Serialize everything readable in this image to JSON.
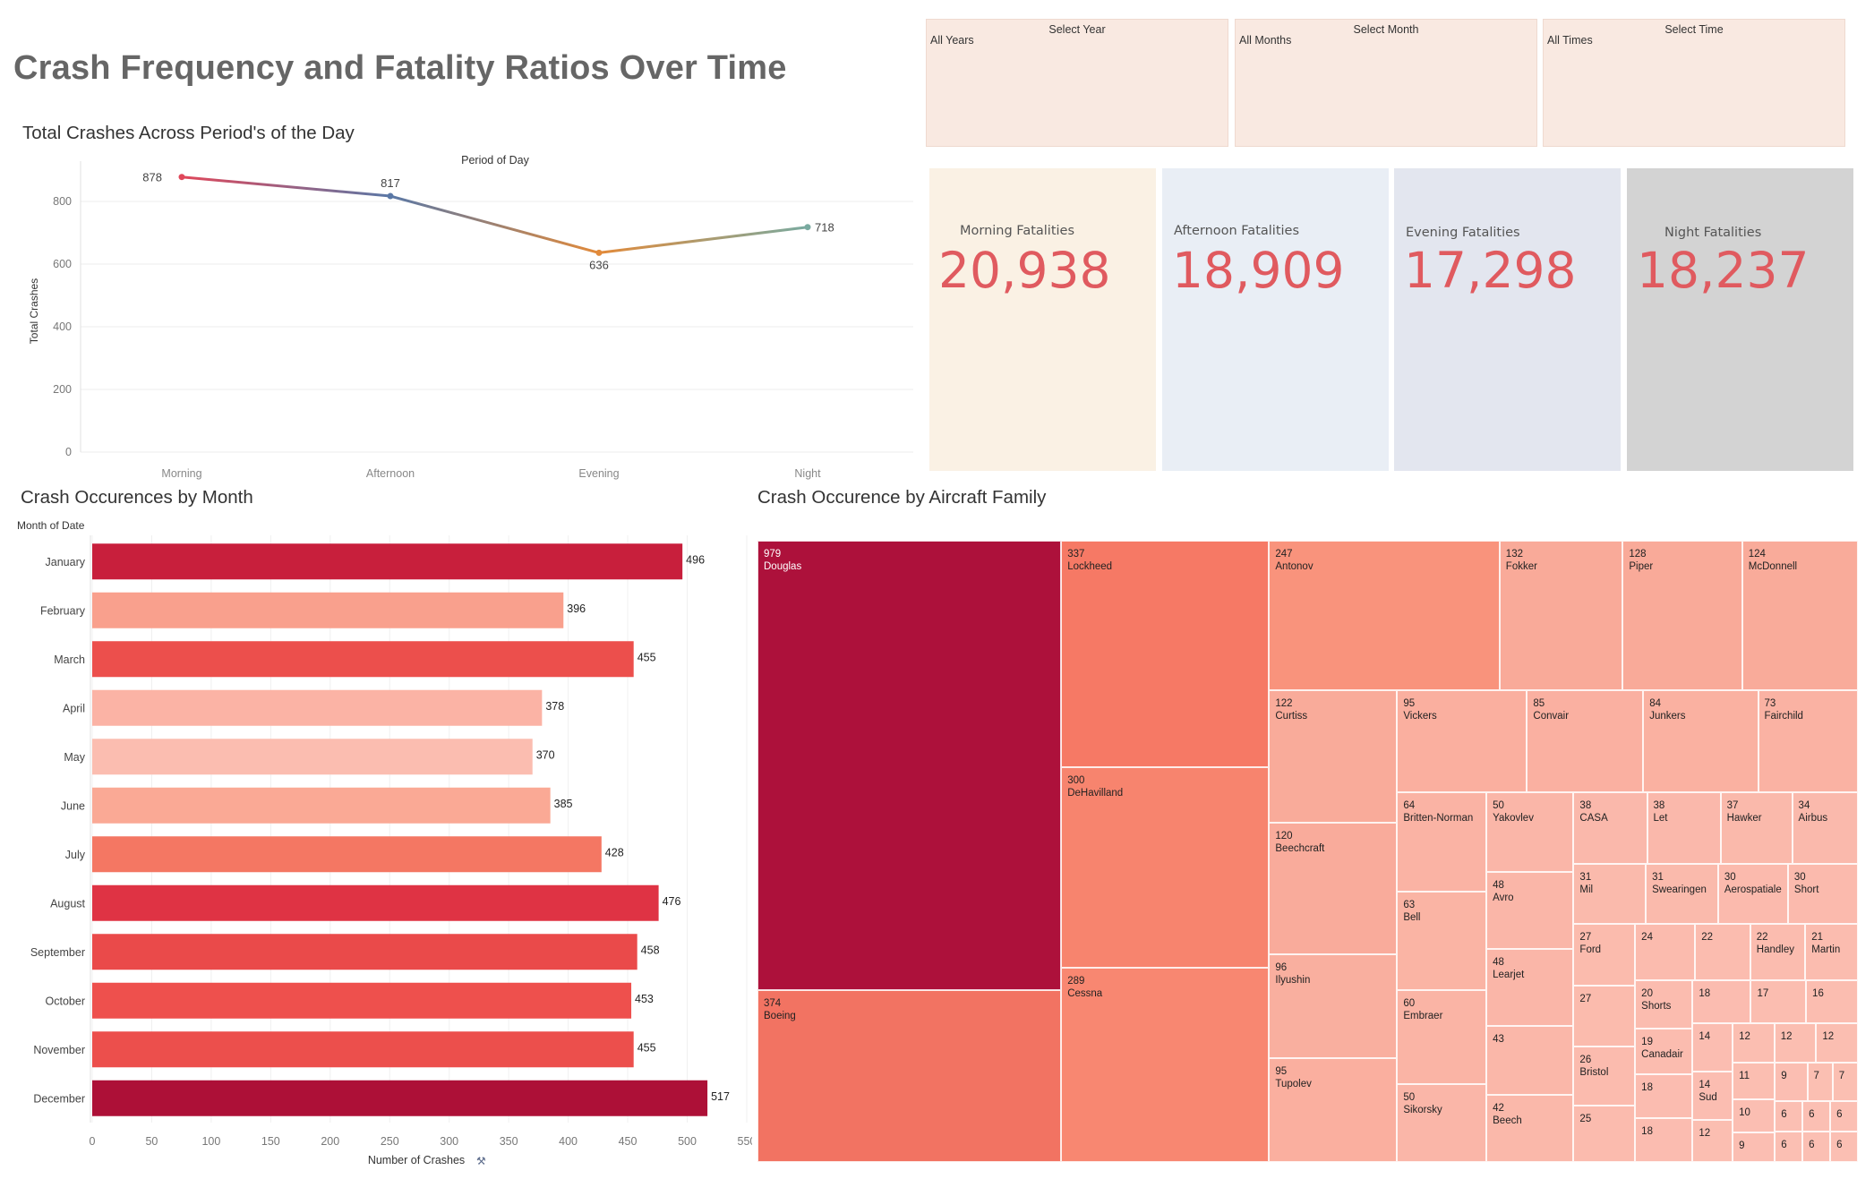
{
  "page": {
    "title": "Crash Frequency and Fatality Ratios Over Time"
  },
  "filters": [
    {
      "label": "Select Year",
      "value": "All Years"
    },
    {
      "label": "Select Month",
      "value": "All Months"
    },
    {
      "label": "Select Time",
      "value": "All Times"
    }
  ],
  "kpis": [
    {
      "label": "Morning Fatalities",
      "value": "20,938",
      "bg": "#faf1e4"
    },
    {
      "label": "Afternoon Fatalities",
      "value": "18,909",
      "bg": "#e9eef5"
    },
    {
      "label": "Evening Fatalities",
      "value": "17,298",
      "bg": "#e3e6ef"
    },
    {
      "label": "Night Fatalities",
      "value": "18,237",
      "bg": "#d3d3d3"
    }
  ],
  "line_section": {
    "title": "Total Crashes Across Period's of the Day"
  },
  "bar_section": {
    "title": "Crash Occurences by Month"
  },
  "treemap_section": {
    "title": "Crash Occurence by Aircraft Family"
  },
  "chart_data": [
    {
      "type": "line",
      "title": "Period of Day",
      "xlabel": "",
      "ylabel": "Total Crashes",
      "categories": [
        "Morning",
        "Afternoon",
        "Evening",
        "Night"
      ],
      "values": [
        878,
        817,
        636,
        718
      ],
      "point_colors": [
        "#e0475a",
        "#5a78a6",
        "#e28a3a",
        "#79aaa0"
      ],
      "yticks": [
        0,
        200,
        400,
        600,
        800
      ],
      "ylim": [
        0,
        900
      ],
      "grid": true
    },
    {
      "type": "bar",
      "orientation": "horizontal",
      "title": "",
      "ylabel": "Month of Date",
      "xlabel": "Number of Crashes",
      "categories": [
        "January",
        "February",
        "March",
        "April",
        "May",
        "June",
        "July",
        "August",
        "September",
        "October",
        "November",
        "December"
      ],
      "values": [
        496,
        396,
        455,
        378,
        370,
        385,
        428,
        476,
        458,
        453,
        455,
        517
      ],
      "colors": [
        "#c81f3c",
        "#f9a08d",
        "#ec4f4c",
        "#fbb3a5",
        "#fbbdb0",
        "#faa995",
        "#f47763",
        "#df3344",
        "#ea4a4a",
        "#ee504d",
        "#ec4f4c",
        "#ad1037"
      ],
      "xticks": [
        0,
        50,
        100,
        150,
        200,
        250,
        300,
        350,
        400,
        450,
        500,
        550
      ],
      "xlim": [
        0,
        560
      ]
    },
    {
      "type": "treemap",
      "title": "",
      "items": [
        {
          "label": "Douglas",
          "value": 979
        },
        {
          "label": "Boeing",
          "value": 374
        },
        {
          "label": "Lockheed",
          "value": 337
        },
        {
          "label": "DeHavilland",
          "value": 300
        },
        {
          "label": "Cessna",
          "value": 289
        },
        {
          "label": "Antonov",
          "value": 247
        },
        {
          "label": "Fokker",
          "value": 132
        },
        {
          "label": "Piper",
          "value": 128
        },
        {
          "label": "McDonnell",
          "value": 124
        },
        {
          "label": "Curtiss",
          "value": 122
        },
        {
          "label": "Beechcraft",
          "value": 120
        },
        {
          "label": "Ilyushin",
          "value": 96
        },
        {
          "label": "Tupolev",
          "value": 95
        },
        {
          "label": "Vickers",
          "value": 95
        },
        {
          "label": "Convair",
          "value": 85
        },
        {
          "label": "Junkers",
          "value": 84
        },
        {
          "label": "Fairchild",
          "value": 73
        },
        {
          "label": "Britten-Norman",
          "value": 64
        },
        {
          "label": "Bell",
          "value": 63
        },
        {
          "label": "Embraer",
          "value": 60
        },
        {
          "label": "Sikorsky",
          "value": 50
        },
        {
          "label": "Yakovlev",
          "value": 50
        },
        {
          "label": "Avro",
          "value": 48
        },
        {
          "label": "Learjet",
          "value": 48
        },
        {
          "label": "",
          "value": 43
        },
        {
          "label": "Beech",
          "value": 42
        },
        {
          "label": "CASA",
          "value": 38
        },
        {
          "label": "Let",
          "value": 38
        },
        {
          "label": "Hawker",
          "value": 37
        },
        {
          "label": "Airbus",
          "value": 34
        },
        {
          "label": "Mil",
          "value": 31
        },
        {
          "label": "Swearingen",
          "value": 31
        },
        {
          "label": "Aerospatiale",
          "value": 30
        },
        {
          "label": "Short",
          "value": 30
        },
        {
          "label": "Ford",
          "value": 27
        },
        {
          "label": "",
          "value": 27
        },
        {
          "label": "Bristol",
          "value": 26
        },
        {
          "label": "",
          "value": 25
        },
        {
          "label": "",
          "value": 24
        },
        {
          "label": "",
          "value": 22
        },
        {
          "label": "Handley",
          "value": 22
        },
        {
          "label": "Martin",
          "value": 21
        },
        {
          "label": "Shorts",
          "value": 20
        },
        {
          "label": "Canadair",
          "value": 19
        },
        {
          "label": "",
          "value": 18
        },
        {
          "label": "",
          "value": 18
        },
        {
          "label": "",
          "value": 18
        },
        {
          "label": "",
          "value": 17
        },
        {
          "label": "",
          "value": 16
        },
        {
          "label": "",
          "value": 14
        },
        {
          "label": "Sud",
          "value": 14
        },
        {
          "label": "",
          "value": 12
        },
        {
          "label": "",
          "value": 12
        },
        {
          "label": "",
          "value": 12
        },
        {
          "label": "",
          "value": 12
        },
        {
          "label": "",
          "value": 11
        },
        {
          "label": "",
          "value": 10
        },
        {
          "label": "",
          "value": 9
        },
        {
          "label": "",
          "value": 9
        },
        {
          "label": "",
          "value": 7
        },
        {
          "label": "",
          "value": 7
        },
        {
          "label": "",
          "value": 6
        },
        {
          "label": "",
          "value": 6
        },
        {
          "label": "",
          "value": 6
        },
        {
          "label": "",
          "value": 6
        },
        {
          "label": "",
          "value": 6
        },
        {
          "label": "",
          "value": 6
        }
      ]
    }
  ]
}
